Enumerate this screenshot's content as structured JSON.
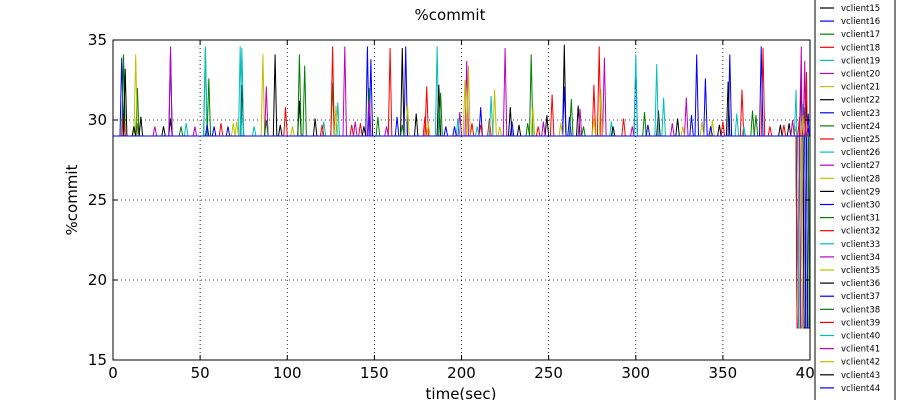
{
  "chart_data": {
    "type": "line",
    "title": "%commit",
    "xlabel": "time(sec)",
    "ylabel": "%commit",
    "xlim": [
      0,
      400
    ],
    "ylim": [
      15,
      35
    ],
    "xticks": [
      0,
      50,
      100,
      150,
      200,
      250,
      300,
      350,
      400
    ],
    "yticks": [
      15,
      20,
      25,
      30,
      35
    ],
    "grid": true,
    "legend_position": "right, outside plot (partially visible)",
    "baseline_value": 29.0,
    "final_drop_value": 17.0,
    "series": [
      {
        "name": "vclient15",
        "color": "#000000",
        "spikes": [
          [
            14,
            29.8
          ],
          [
            33,
            30.1
          ],
          [
            107,
            31.2
          ],
          [
            166,
            34.5
          ],
          [
            259,
            34.7
          ],
          [
            313,
            30.6
          ],
          [
            395,
            32.5
          ]
        ]
      },
      {
        "name": "vclient16",
        "color": "#0000ff",
        "spikes": [
          [
            5,
            33.9
          ],
          [
            33,
            34.2
          ],
          [
            146,
            34.6
          ],
          [
            259,
            32.1
          ],
          [
            300,
            33.4
          ],
          [
            335,
            34.1
          ],
          [
            354,
            34.1
          ],
          [
            399,
            29.5
          ]
        ]
      },
      {
        "name": "vclient17",
        "color": "#008000",
        "spikes": [
          [
            6,
            34.1
          ],
          [
            14,
            32.0
          ],
          [
            53,
            34.5
          ],
          [
            107,
            34.1
          ],
          [
            126,
            32.3
          ],
          [
            240,
            34.1
          ],
          [
            397,
            30.8
          ]
        ]
      },
      {
        "name": "vclient18",
        "color": "#ff0000",
        "spikes": [
          [
            6,
            30.3
          ],
          [
            126,
            34.6
          ],
          [
            159,
            34.5
          ],
          [
            180,
            32.1
          ],
          [
            216,
            30.1
          ],
          [
            252,
            31.6
          ],
          [
            279,
            34.6
          ],
          [
            361,
            31.9
          ],
          [
            373,
            34.5
          ],
          [
            394,
            30.2
          ]
        ]
      },
      {
        "name": "vclient19",
        "color": "#00bfbf",
        "spikes": [
          [
            53,
            34.6
          ],
          [
            73,
            34.6
          ],
          [
            186,
            34.6
          ],
          [
            300,
            34.1
          ],
          [
            312,
            33.5
          ],
          [
            396,
            31.0
          ]
        ]
      },
      {
        "name": "vclient20",
        "color": "#bf00bf",
        "spikes": [
          [
            33,
            34.6
          ],
          [
            133,
            34.6
          ],
          [
            203,
            33.7
          ],
          [
            225,
            34.5
          ],
          [
            282,
            33.9
          ],
          [
            395,
            34.6
          ]
        ]
      },
      {
        "name": "vclient21",
        "color": "#bfbf00",
        "spikes": [
          [
            13,
            34.1
          ],
          [
            86,
            34.1
          ],
          [
            202,
            32.5
          ],
          [
            219,
            31.9
          ],
          [
            241,
            30.8
          ],
          [
            280,
            31.9
          ],
          [
            392,
            29.6
          ]
        ]
      },
      {
        "name": "vclient22",
        "color": "#000000",
        "spikes": [
          [
            7,
            33.2
          ],
          [
            74,
            32.2
          ],
          [
            93,
            34.1
          ],
          [
            187,
            32.2
          ],
          [
            228,
            30.8
          ],
          [
            267,
            30.9
          ],
          [
            353,
            32.4
          ],
          [
            398,
            31.2
          ]
        ]
      },
      {
        "name": "vclient23",
        "color": "#0000ff",
        "spikes": [
          [
            148,
            33.8
          ],
          [
            168,
            34.6
          ],
          [
            211,
            30.8
          ],
          [
            262,
            30.2
          ],
          [
            340,
            32.6
          ],
          [
            399,
            30.4
          ]
        ]
      },
      {
        "name": "vclient24",
        "color": "#008000",
        "spikes": [
          [
            55,
            32.6
          ],
          [
            110,
            33.4
          ],
          [
            147,
            32.0
          ],
          [
            188,
            31.7
          ],
          [
            263,
            31.3
          ],
          [
            367,
            30.6
          ]
        ]
      },
      {
        "name": "vclient25",
        "color": "#ff0000",
        "spikes": [
          [
            99,
            30.8
          ],
          [
            137,
            29.7
          ],
          [
            179,
            30.2
          ],
          [
            206,
            29.8
          ],
          [
            276,
            32.2
          ],
          [
            350,
            29.9
          ],
          [
            398,
            33.0
          ]
        ]
      },
      {
        "name": "vclient26",
        "color": "#00bfbf",
        "spikes": [
          [
            42,
            29.8
          ],
          [
            74,
            34.5
          ],
          [
            129,
            31.1
          ],
          [
            217,
            31.5
          ],
          [
            316,
            31.4
          ],
          [
            392,
            31.9
          ]
        ]
      },
      {
        "name": "vclient27",
        "color": "#bf00bf",
        "spikes": [
          [
            88,
            32.1
          ],
          [
            147,
            31.3
          ],
          [
            199,
            30.5
          ],
          [
            268,
            30.7
          ],
          [
            329,
            31.4
          ],
          [
            397,
            33.7
          ]
        ]
      },
      {
        "name": "vclient28",
        "color": "#bfbf00",
        "spikes": [
          [
            71,
            29.9
          ],
          [
            128,
            30.9
          ],
          [
            169,
            31.0
          ],
          [
            204,
            33.4
          ],
          [
            276,
            30.1
          ],
          [
            344,
            30.0
          ],
          [
            396,
            30.3
          ]
        ]
      },
      {
        "name": "vclient29",
        "color": "#000000",
        "spikes": [
          [
            16,
            30.2
          ],
          [
            116,
            30.1
          ],
          [
            174,
            30.4
          ],
          [
            249,
            30.3
          ],
          [
            324,
            30.1
          ],
          [
            388,
            29.8
          ]
        ]
      },
      {
        "name": "vclient30",
        "color": "#0000ff",
        "spikes": [
          [
            54,
            29.7
          ],
          [
            163,
            30.2
          ],
          [
            229,
            29.9
          ],
          [
            332,
            30.3
          ],
          [
            372,
            34.6
          ]
        ]
      },
      {
        "name": "vclient31",
        "color": "#008000",
        "spikes": [
          [
            88,
            30.0
          ],
          [
            152,
            30.2
          ],
          [
            238,
            29.8
          ],
          [
            305,
            30.5
          ],
          [
            369,
            30.3
          ]
        ]
      },
      {
        "name": "vclient32",
        "color": "#ff0000",
        "spikes": [
          [
            62,
            29.8
          ],
          [
            142,
            29.8
          ],
          [
            211,
            29.7
          ],
          [
            293,
            30.1
          ],
          [
            385,
            29.7
          ]
        ]
      },
      {
        "name": "vclient33",
        "color": "#00bfbf",
        "spikes": [
          [
            121,
            29.9
          ],
          [
            198,
            30.1
          ],
          [
            286,
            29.9
          ],
          [
            358,
            30.4
          ]
        ]
      },
      {
        "name": "vclient34",
        "color": "#bf00bf",
        "spikes": [
          [
            24,
            29.6
          ],
          [
            139,
            29.9
          ],
          [
            247,
            29.9
          ],
          [
            321,
            29.8
          ],
          [
            390,
            30.0
          ]
        ]
      },
      {
        "name": "vclient35",
        "color": "#bfbf00",
        "spikes": [
          [
            69,
            29.8
          ],
          [
            181,
            29.8
          ],
          [
            257,
            29.8
          ],
          [
            338,
            29.9
          ]
        ]
      },
      {
        "name": "vclient36",
        "color": "#000000",
        "spikes": [
          [
            12,
            29.6
          ],
          [
            96,
            29.7
          ],
          [
            233,
            29.7
          ],
          [
            348,
            29.7
          ],
          [
            383,
            29.7
          ]
        ]
      },
      {
        "name": "vclient37",
        "color": "#0000ff",
        "spikes": [
          [
            58,
            29.6
          ],
          [
            191,
            29.6
          ],
          [
            307,
            29.7
          ]
        ]
      },
      {
        "name": "vclient38",
        "color": "#008000",
        "spikes": [
          [
            39,
            29.6
          ],
          [
            166,
            29.7
          ],
          [
            270,
            29.6
          ]
        ]
      },
      {
        "name": "vclient39",
        "color": "#ff0000",
        "spikes": [
          [
            120,
            29.7
          ],
          [
            244,
            29.6
          ],
          [
            377,
            29.6
          ]
        ]
      },
      {
        "name": "vclient40",
        "color": "#00bfbf",
        "spikes": [
          [
            81,
            29.6
          ],
          [
            209,
            29.6
          ],
          [
            362,
            29.6
          ]
        ]
      },
      {
        "name": "vclient41",
        "color": "#bf00bf",
        "spikes": [
          [
            47,
            29.6
          ],
          [
            157,
            29.6
          ],
          [
            298,
            29.6
          ]
        ]
      },
      {
        "name": "vclient42",
        "color": "#bfbf00",
        "spikes": [
          [
            103,
            29.6
          ],
          [
            222,
            29.6
          ],
          [
            327,
            29.6
          ]
        ]
      },
      {
        "name": "vclient43",
        "color": "#000000",
        "spikes": [
          [
            29,
            29.6
          ],
          [
            144,
            29.6
          ],
          [
            287,
            29.6
          ]
        ]
      },
      {
        "name": "vclient44",
        "color": "#0000ff",
        "spikes": [
          [
            66,
            29.6
          ],
          [
            196,
            29.6
          ],
          [
            343,
            29.6
          ]
        ]
      }
    ]
  }
}
